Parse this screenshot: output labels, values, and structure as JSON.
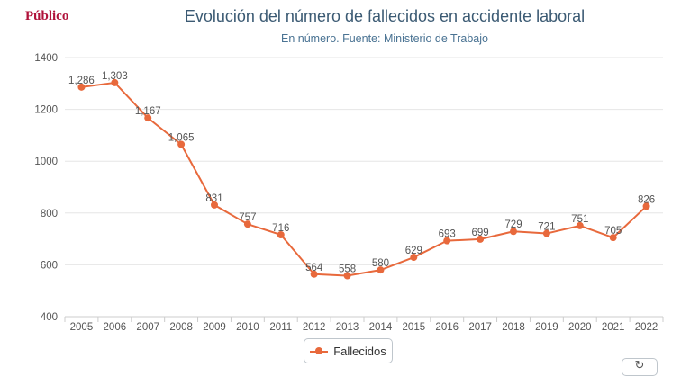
{
  "brand": "Público",
  "colors": {
    "series": "#e8693c",
    "title": "#3b5a73",
    "brand": "#b0123a"
  },
  "chart_data": {
    "type": "line",
    "title": "Evolución del número de fallecidos en accidente laboral",
    "subtitle": "En número. Fuente: Ministerio de Trabajo",
    "categories": [
      "2005",
      "2006",
      "2007",
      "2008",
      "2009",
      "2010",
      "2011",
      "2012",
      "2013",
      "2014",
      "2015",
      "2016",
      "2017",
      "2018",
      "2019",
      "2020",
      "2021",
      "2022"
    ],
    "series": [
      {
        "name": "Fallecidos",
        "values": [
          1286,
          1303,
          1167,
          1065,
          831,
          757,
          716,
          564,
          558,
          580,
          629,
          693,
          699,
          729,
          721,
          751,
          705,
          826
        ]
      }
    ],
    "data_labels": [
      "1,286",
      "1,303",
      "1,167",
      "1,065",
      "831",
      "757",
      "716",
      "564",
      "558",
      "580",
      "629",
      "693",
      "699",
      "729",
      "721",
      "751",
      "705",
      "826"
    ],
    "y_ticks": [
      "400",
      "600",
      "800",
      "1000",
      "1200",
      "1400"
    ],
    "ylim": [
      400,
      1400
    ],
    "grid": true,
    "legend_position": "bottom-center"
  },
  "legend": {
    "label": "Fallecidos"
  },
  "corner_button": {
    "icon": "refresh-icon"
  }
}
